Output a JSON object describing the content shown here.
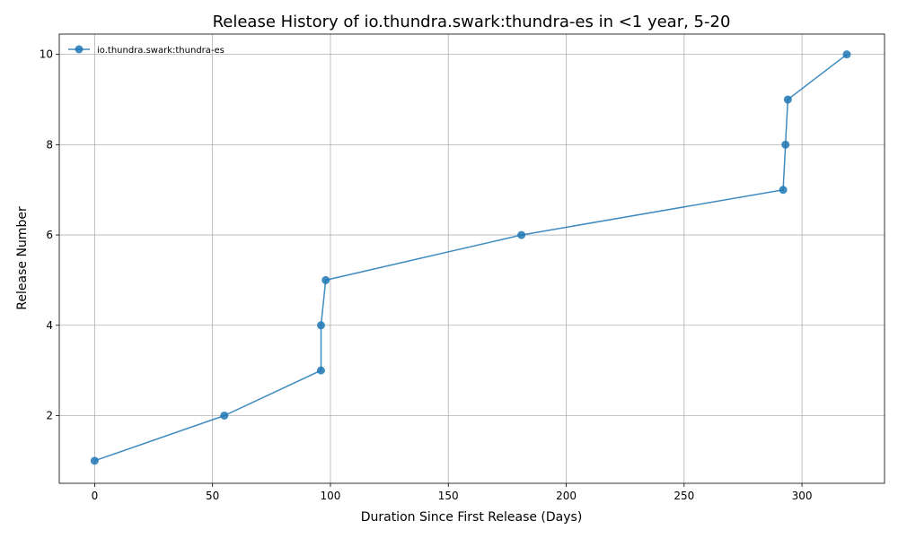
{
  "chart_data": {
    "type": "line",
    "title": "Release History of io.thundra.swark:thundra-es in <1 year, 5-20",
    "xlabel": "Duration Since First Release (Days)",
    "ylabel": "Release Number",
    "xlim": [
      -15,
      335
    ],
    "ylim": [
      0.5,
      10.45
    ],
    "xticks": [
      0,
      50,
      100,
      150,
      200,
      250,
      300
    ],
    "yticks": [
      2,
      4,
      6,
      8,
      10
    ],
    "grid": true,
    "legend_position": "top-left",
    "series": [
      {
        "name": "io.thundra.swark:thundra-es",
        "color": "#1f77b4",
        "marker": "circle",
        "points": [
          {
            "x": 0,
            "y": 1
          },
          {
            "x": 55,
            "y": 2
          },
          {
            "x": 96,
            "y": 3
          },
          {
            "x": 96,
            "y": 4
          },
          {
            "x": 98,
            "y": 5
          },
          {
            "x": 181,
            "y": 6
          },
          {
            "x": 292,
            "y": 7
          },
          {
            "x": 293,
            "y": 8
          },
          {
            "x": 294,
            "y": 9
          },
          {
            "x": 319,
            "y": 10
          }
        ]
      }
    ]
  }
}
